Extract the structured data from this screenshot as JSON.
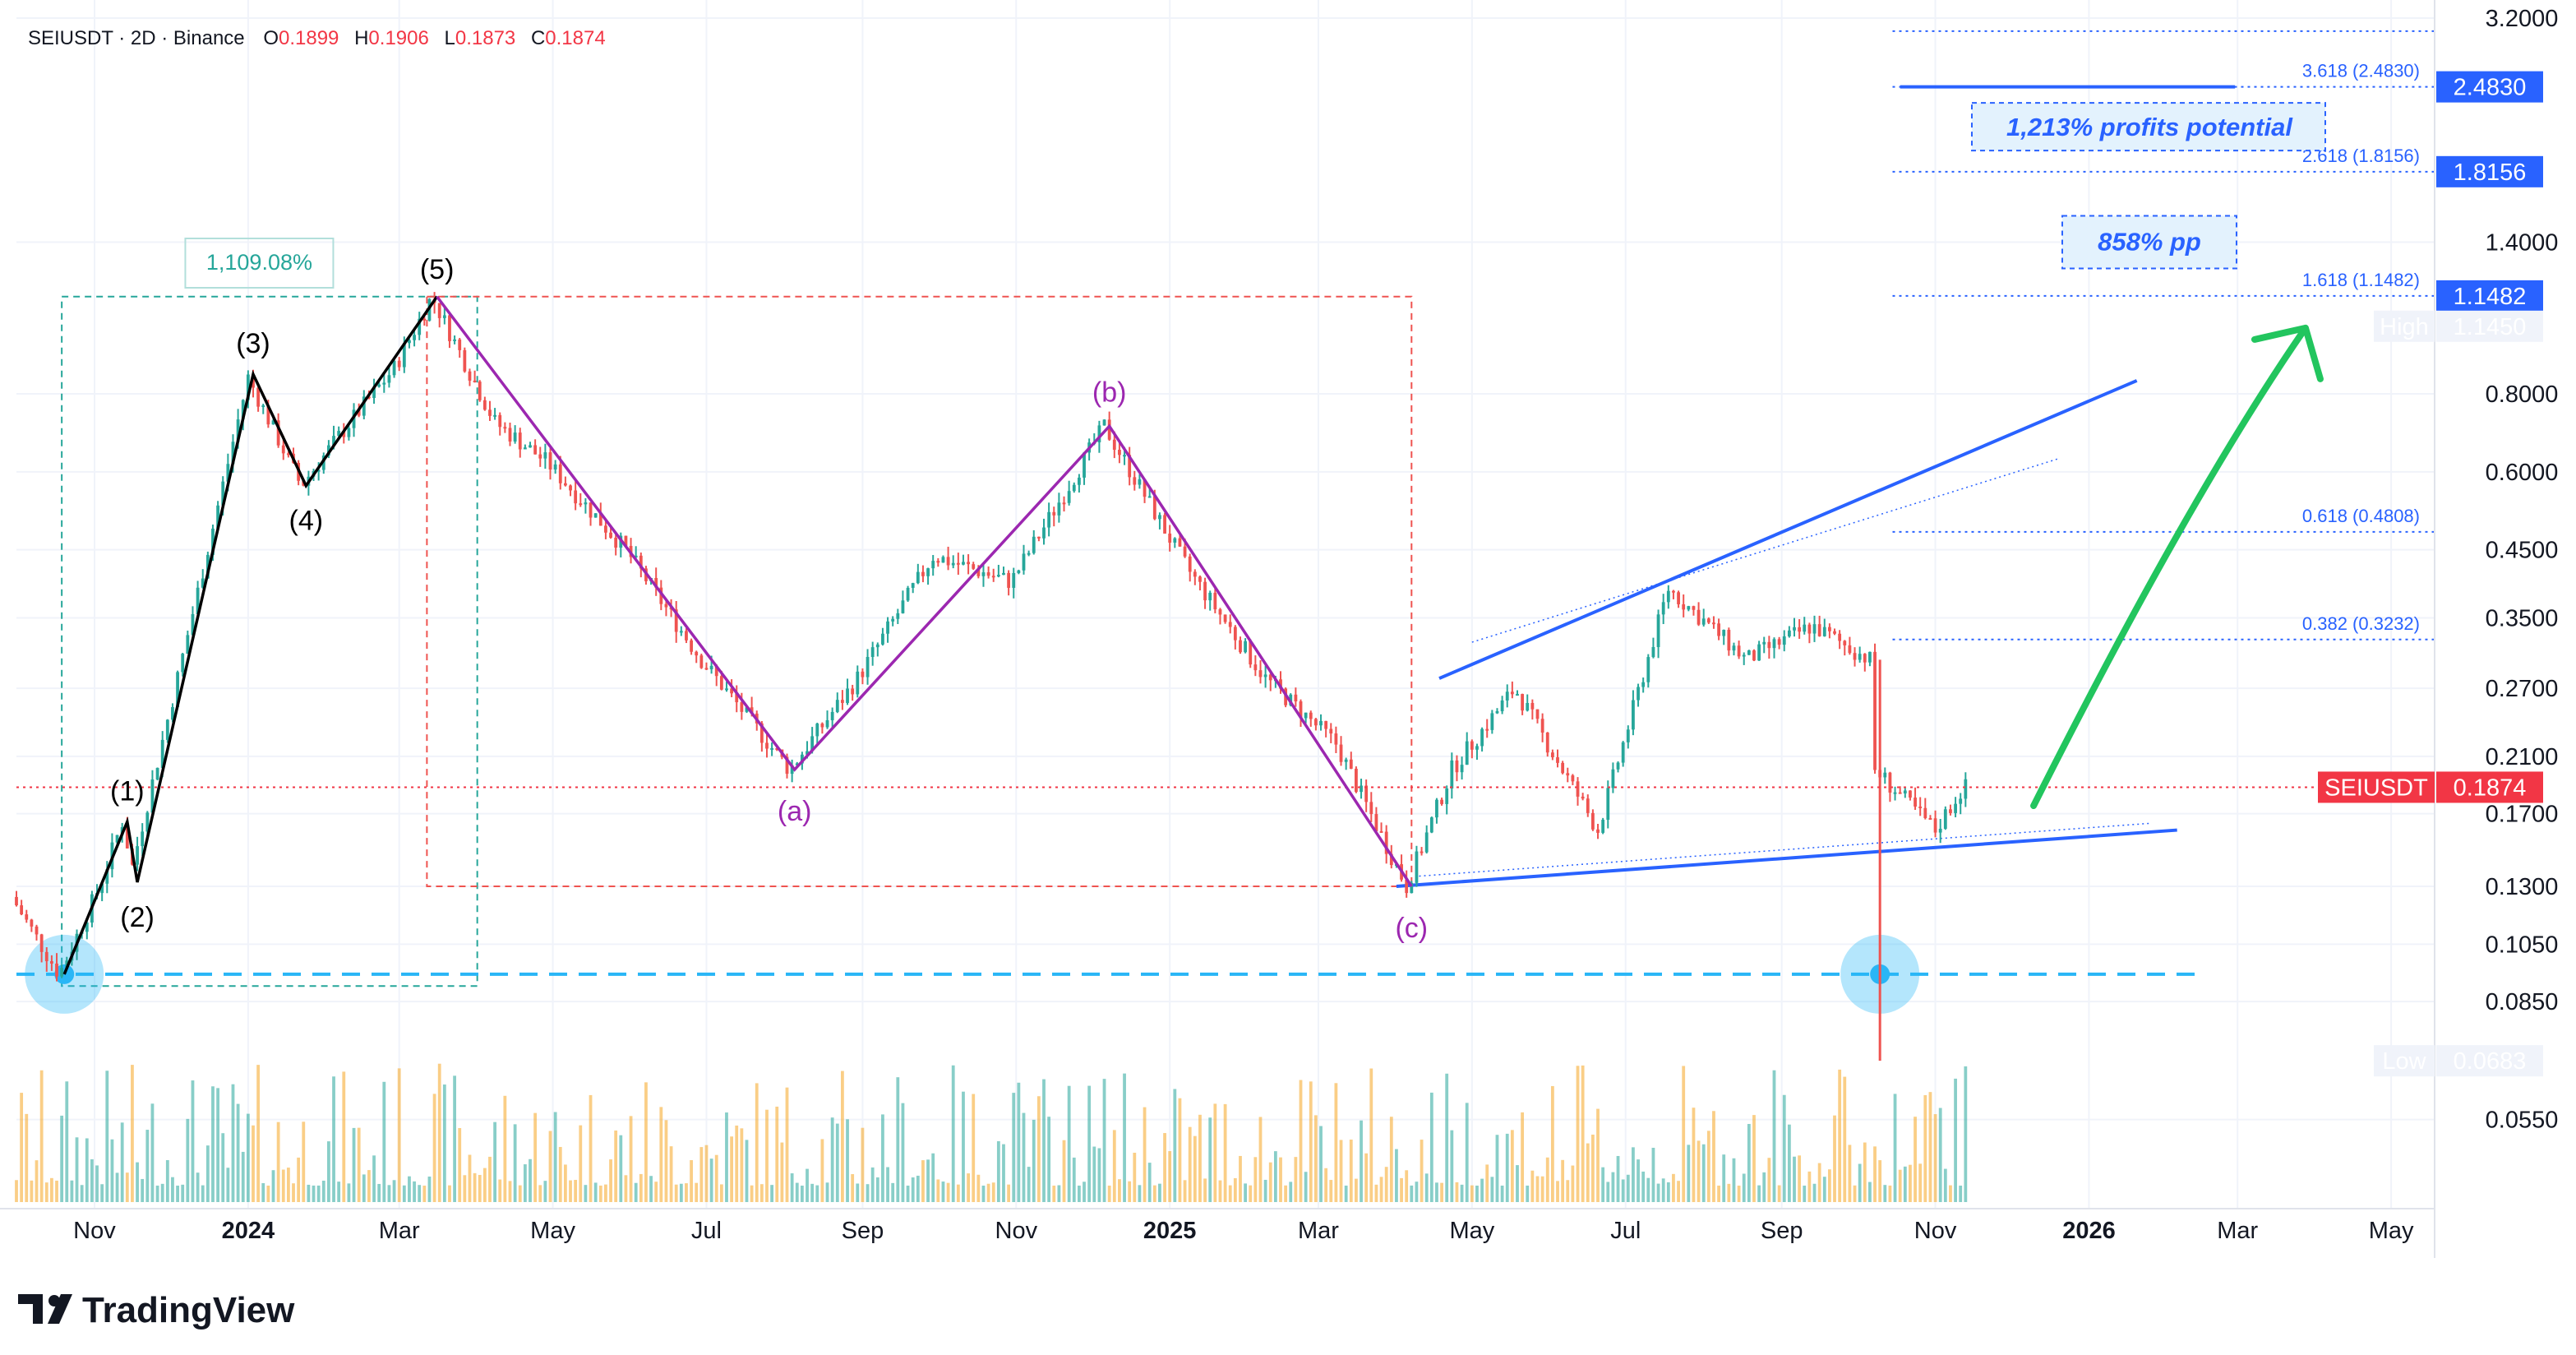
{
  "header": {
    "symbol": "SEIUSDT · 2D · Binance",
    "open_label": "O",
    "open": "0.1899",
    "high_label": "H",
    "high": "0.1906",
    "low_label": "L",
    "low": "0.1873",
    "close_label": "C",
    "close": "0.1874"
  },
  "price_axis": {
    "ticks": [
      "3.2000",
      "1.4000",
      "0.8000",
      "0.6000",
      "0.4500",
      "0.3500",
      "0.2700",
      "0.2100",
      "0.1700",
      "0.1300",
      "0.1050",
      "0.0850",
      "0.0550"
    ],
    "tags": [
      {
        "label": "",
        "value": "2.4830",
        "kind": "blue"
      },
      {
        "label": "",
        "value": "1.8156",
        "kind": "blue"
      },
      {
        "label": "",
        "value": "1.1482",
        "kind": "blue"
      },
      {
        "label": "High",
        "value": "1.1450",
        "kind": "grey"
      },
      {
        "label": "SEIUSDT",
        "value": "0.1874",
        "kind": "red"
      },
      {
        "label": "Low",
        "value": "0.0683",
        "kind": "grey"
      }
    ]
  },
  "time_axis": {
    "labels": [
      "Nov",
      "2024",
      "Mar",
      "May",
      "Jul",
      "Sep",
      "Nov",
      "2025",
      "Mar",
      "May",
      "Jul",
      "Sep",
      "Nov",
      "2026",
      "Mar",
      "May"
    ],
    "bold": [
      "2024",
      "2025",
      "2026"
    ]
  },
  "annotations": {
    "waves": [
      "(1)",
      "(2)",
      "(3)",
      "(4)",
      "(5)",
      "(a)",
      "(b)",
      "(c)"
    ],
    "fib_levels": [
      "3.618 (2.4830)",
      "2.618 (1.8156)",
      "1.618 (1.1482)",
      "0.618 (0.4808)",
      "0.382 (0.3232)"
    ],
    "notes": [
      "1,213% profits potential",
      "858% pp"
    ],
    "measure": "1,109.08%"
  },
  "brand": "TradingView",
  "colors": {
    "up": "#26a69a",
    "down": "#ef5350",
    "elliott_impulse": "#000000",
    "elliott_correction": "#9c27b0",
    "fib": "#2962ff",
    "target_arrow": "#22c55e",
    "support_dash": "#29b6f6",
    "price_tag": "#f23645"
  },
  "chart_data": {
    "type": "candlestick",
    "symbol": "SEIUSDT",
    "interval": "2D",
    "exchange": "Binance",
    "y_scale": "log",
    "y_range": [
      0.05,
      3.2
    ],
    "x_range": [
      "2023-10-01",
      "2026-05-15"
    ],
    "last_close": 0.1874,
    "high": 1.145,
    "low": 0.0683,
    "price_path": [
      {
        "date": "2023-10-01",
        "price": 0.125
      },
      {
        "date": "2023-10-20",
        "price": 0.094
      },
      {
        "date": "2023-11-05",
        "price": 0.13
      },
      {
        "date": "2023-11-14",
        "price": 0.165
      },
      {
        "date": "2023-11-18",
        "price": 0.14
      },
      {
        "date": "2023-12-05",
        "price": 0.27
      },
      {
        "date": "2024-01-03",
        "price": 0.85
      },
      {
        "date": "2024-01-24",
        "price": 0.57
      },
      {
        "date": "2024-02-10",
        "price": 0.7
      },
      {
        "date": "2024-03-01",
        "price": 0.88
      },
      {
        "date": "2024-03-16",
        "price": 1.145
      },
      {
        "date": "2024-04-10",
        "price": 0.72
      },
      {
        "date": "2024-05-01",
        "price": 0.62
      },
      {
        "date": "2024-06-01",
        "price": 0.45
      },
      {
        "date": "2024-07-01",
        "price": 0.3
      },
      {
        "date": "2024-08-05",
        "price": 0.2
      },
      {
        "date": "2024-09-01",
        "price": 0.28
      },
      {
        "date": "2024-10-01",
        "price": 0.44
      },
      {
        "date": "2024-11-01",
        "price": 0.4
      },
      {
        "date": "2024-12-08",
        "price": 0.71
      },
      {
        "date": "2025-01-10",
        "price": 0.42
      },
      {
        "date": "2025-02-10",
        "price": 0.28
      },
      {
        "date": "2025-03-10",
        "price": 0.22
      },
      {
        "date": "2025-04-07",
        "price": 0.13
      },
      {
        "date": "2025-04-25",
        "price": 0.2
      },
      {
        "date": "2025-05-20",
        "price": 0.27
      },
      {
        "date": "2025-06-22",
        "price": 0.16
      },
      {
        "date": "2025-07-20",
        "price": 0.39
      },
      {
        "date": "2025-08-20",
        "price": 0.3
      },
      {
        "date": "2025-09-15",
        "price": 0.34
      },
      {
        "date": "2025-10-08",
        "price": 0.3
      },
      {
        "date": "2025-10-10",
        "price": 0.2
      },
      {
        "date": "2025-11-03",
        "price": 0.16
      },
      {
        "date": "2025-11-14",
        "price": 0.1874
      }
    ],
    "elliott_impulse": [
      {
        "label": "(1)",
        "date": "2023-11-14",
        "price": 0.165
      },
      {
        "label": "(2)",
        "date": "2023-11-18",
        "price": 0.132
      },
      {
        "label": "(3)",
        "date": "2024-01-03",
        "price": 0.86
      },
      {
        "label": "(4)",
        "date": "2024-01-24",
        "price": 0.57
      },
      {
        "label": "(5)",
        "date": "2024-03-16",
        "price": 1.145
      }
    ],
    "elliott_correction": [
      {
        "label": "(a)",
        "date": "2024-08-05",
        "price": 0.2
      },
      {
        "label": "(b)",
        "date": "2024-12-08",
        "price": 0.71
      },
      {
        "label": "(c)",
        "date": "2025-04-07",
        "price": 0.13
      }
    ],
    "fib_levels": [
      {
        "ratio": "3.618",
        "price": 2.483
      },
      {
        "ratio": "2.618",
        "price": 1.8156
      },
      {
        "ratio": "1.618",
        "price": 1.1482
      },
      {
        "ratio": "0.618",
        "price": 0.4808
      },
      {
        "ratio": "0.382",
        "price": 0.3232
      }
    ],
    "support_price": 0.094,
    "measure_pct": "1,109.08%"
  }
}
